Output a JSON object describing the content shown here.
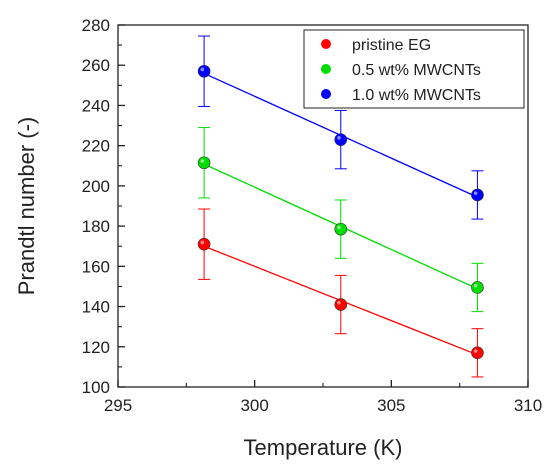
{
  "chart_data": {
    "type": "scatter",
    "xlabel": "Temperature (K)",
    "ylabel": "Prandtl number (-)",
    "xlim": [
      295,
      310
    ],
    "ylim": [
      100,
      280
    ],
    "xticks": [
      295,
      300,
      305,
      310
    ],
    "yticks": [
      100,
      120,
      140,
      160,
      180,
      200,
      220,
      240,
      260,
      280
    ],
    "x_tick_labels": [
      "295",
      "300",
      "305",
      "310"
    ],
    "y_tick_labels": [
      "100",
      "120",
      "140",
      "160",
      "180",
      "200",
      "220",
      "240",
      "260",
      "280"
    ],
    "grid": false,
    "legend_position": "top-right",
    "fit_lines": true,
    "x": [
      298.15,
      303.15,
      308.15
    ],
    "series": [
      {
        "name": "pristine EG",
        "color": "#ff0000",
        "values": [
          171,
          141,
          117
        ],
        "errors": [
          17.5,
          14.5,
          12
        ]
      },
      {
        "name": "0.5 wt% MWCNTs",
        "color": "#00dd00",
        "values": [
          211.5,
          178.5,
          149.5
        ],
        "errors": [
          17.5,
          14.5,
          12
        ]
      },
      {
        "name": "1.0 wt% MWCNTs",
        "color": "#0000ff",
        "values": [
          257,
          223,
          195.5
        ],
        "errors": [
          17.5,
          14.5,
          12
        ]
      }
    ]
  }
}
